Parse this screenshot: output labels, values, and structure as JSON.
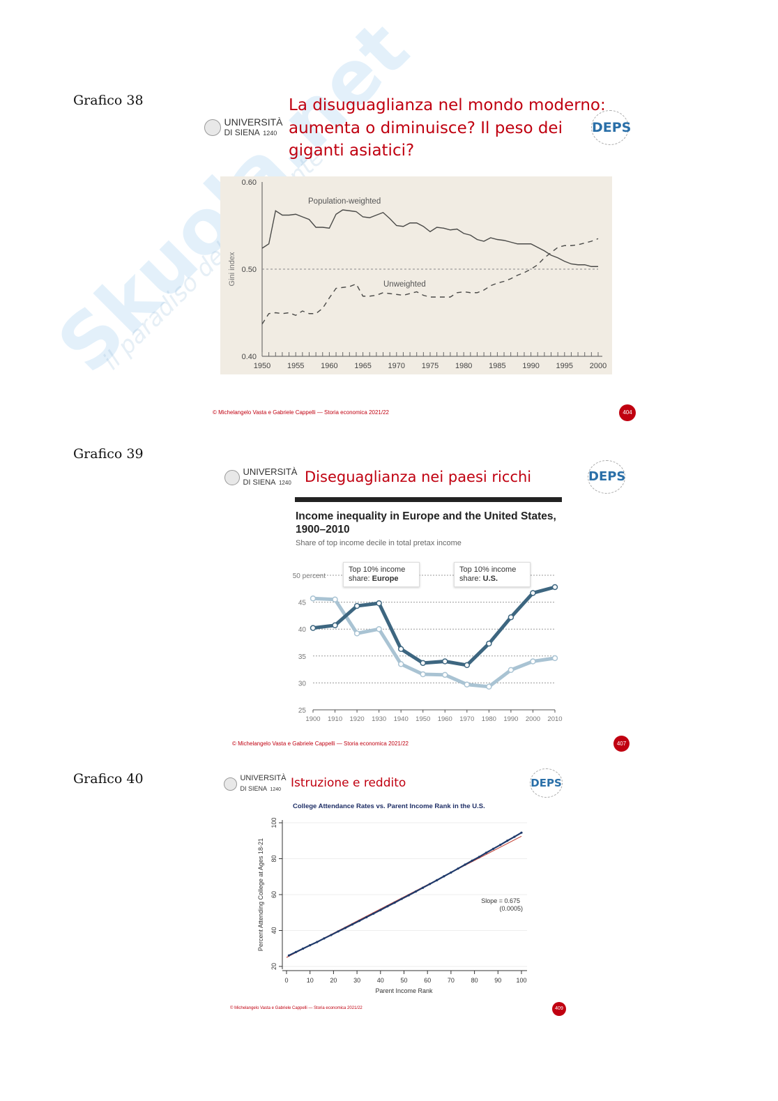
{
  "watermark": {
    "brand": "Skuola.net",
    "tagline": "il paradiso dello studente"
  },
  "slides": [
    {
      "label": "Grafico 38",
      "university": {
        "line1": "UNIVERSITÀ",
        "line2": "DI SIENA",
        "year": "1240"
      },
      "title_lines": [
        "La disuguaglianza nel mondo moderno:",
        "aumenta o diminuisce? Il peso dei",
        "giganti asiatici?"
      ],
      "deps_logo": "DEPS",
      "footer": "© Michelangelo Vasta e Gabriele Cappelli — Storia economica 2021/22",
      "page_number": "404"
    },
    {
      "label": "Grafico 39",
      "university": {
        "line1": "UNIVERSITÀ",
        "line2": "DI SIENA",
        "year": "1240"
      },
      "title_lines": [
        "Diseguaglianza nei paesi ricchi"
      ],
      "deps_logo": "DEPS",
      "footer": "© Michelangelo Vasta e Gabriele Cappelli — Storia economica 2021/22",
      "page_number": "407"
    },
    {
      "label": "Grafico 40",
      "university": {
        "line1": "UNIVERSITÀ",
        "line2": "DI SIENA",
        "year": "1240"
      },
      "title_lines": [
        "Istruzione e reddito"
      ],
      "deps_logo": "DEPS",
      "footer": "© Michelangelo Vasta e Gabriele Cappelli — Storia economica 2021/22",
      "page_number": "409"
    }
  ],
  "chart_data": [
    {
      "type": "line",
      "title": "",
      "xlabel": "",
      "ylabel": "Gini index",
      "xlim": [
        1950,
        2000
      ],
      "ylim": [
        0.4,
        0.6
      ],
      "yticks": [
        "0.40",
        "0.50",
        "0.60"
      ],
      "xticks": [
        "1950",
        "1955",
        "1960",
        "1965",
        "1970",
        "1975",
        "1980",
        "1985",
        "1990",
        "1995",
        "2000"
      ],
      "reference_line": 0.5,
      "x": [
        1950,
        1951,
        1952,
        1953,
        1954,
        1955,
        1956,
        1957,
        1958,
        1959,
        1960,
        1961,
        1962,
        1963,
        1964,
        1965,
        1966,
        1967,
        1968,
        1969,
        1970,
        1971,
        1972,
        1973,
        1974,
        1975,
        1976,
        1977,
        1978,
        1979,
        1980,
        1981,
        1982,
        1983,
        1984,
        1985,
        1986,
        1987,
        1988,
        1989,
        1990,
        1991,
        1992,
        1993,
        1994,
        1995,
        1996,
        1997,
        1998,
        1999,
        2000
      ],
      "series": [
        {
          "name": "Population-weighted",
          "style": "solid",
          "values": [
            0.524,
            0.529,
            0.567,
            0.562,
            0.562,
            0.563,
            0.56,
            0.557,
            0.548,
            0.548,
            0.547,
            0.563,
            0.568,
            0.567,
            0.566,
            0.56,
            0.559,
            0.562,
            0.565,
            0.558,
            0.55,
            0.549,
            0.553,
            0.553,
            0.549,
            0.543,
            0.548,
            0.547,
            0.545,
            0.546,
            0.541,
            0.539,
            0.534,
            0.532,
            0.536,
            0.534,
            0.533,
            0.531,
            0.529,
            0.529,
            0.529,
            0.525,
            0.521,
            0.516,
            0.513,
            0.509,
            0.506,
            0.505,
            0.505,
            0.503,
            0.503
          ]
        },
        {
          "name": "Unweighted",
          "style": "dashed",
          "values": [
            0.437,
            0.449,
            0.45,
            0.449,
            0.45,
            0.447,
            0.452,
            0.449,
            0.449,
            0.455,
            0.467,
            0.478,
            0.479,
            0.48,
            0.483,
            0.469,
            0.469,
            0.47,
            0.473,
            0.472,
            0.471,
            0.47,
            0.472,
            0.474,
            0.47,
            0.468,
            0.468,
            0.468,
            0.468,
            0.473,
            0.474,
            0.473,
            0.473,
            0.476,
            0.481,
            0.484,
            0.486,
            0.489,
            0.493,
            0.496,
            0.5,
            0.505,
            0.513,
            0.519,
            0.525,
            0.527,
            0.527,
            0.528,
            0.53,
            0.532,
            0.535
          ]
        }
      ],
      "colors": {
        "line": "#4a4a48",
        "background": "#f1ece3"
      }
    },
    {
      "type": "line",
      "title": "Income inequality in Europe and the United States,",
      "title_line2": "1900–2010",
      "subtitle": "Share of top income decile in total pretax income",
      "xlabel": "",
      "ylabel": "",
      "ylim": [
        25,
        50
      ],
      "yticks": [
        "25",
        "30",
        "35",
        "40",
        "45",
        "50 percent"
      ],
      "xticks": [
        "1900",
        "1910",
        "1920",
        "1930",
        "1940",
        "1950",
        "1960",
        "1970",
        "1980",
        "1990",
        "2000",
        "2010"
      ],
      "x": [
        1900,
        1910,
        1920,
        1930,
        1940,
        1950,
        1960,
        1970,
        1980,
        1990,
        2000,
        2010
      ],
      "series": [
        {
          "name": "Top 10% income share: U.S.",
          "label_prefix": "Top 10% income",
          "label_mid": "share: ",
          "label_bold": "U.S.",
          "color": "#3d6680",
          "values": [
            40.2,
            40.7,
            44.3,
            44.8,
            36.3,
            33.7,
            34.0,
            33.3,
            37.3,
            42.2,
            46.7,
            47.8
          ]
        },
        {
          "name": "Top 10% income share: Europe",
          "label_prefix": "Top 10% income",
          "label_mid": "share: ",
          "label_bold": "Europe",
          "color": "#a9c3d3",
          "values": [
            45.7,
            45.5,
            39.2,
            40.0,
            33.5,
            31.6,
            31.5,
            29.7,
            29.3,
            32.4,
            34.0,
            34.6
          ]
        }
      ]
    },
    {
      "type": "scatter",
      "title": "College Attendance Rates vs. Parent Income Rank in the U.S.",
      "xlabel": "Parent Income Rank",
      "ylabel": "Percent Attending College at Ages 18-21",
      "xlim": [
        0,
        100
      ],
      "ylim": [
        20,
        100
      ],
      "xticks": [
        "0",
        "10",
        "20",
        "30",
        "40",
        "50",
        "60",
        "70",
        "80",
        "90",
        "100"
      ],
      "yticks": [
        "20",
        "40",
        "60",
        "80",
        "100"
      ],
      "annotation": {
        "line1": "Slope = 0.675",
        "line2": "(0.0005)"
      },
      "x": [
        1,
        4,
        7,
        10,
        13,
        16,
        19,
        22,
        25,
        28,
        31,
        34,
        37,
        40,
        43,
        46,
        49,
        52,
        55,
        58,
        61,
        64,
        67,
        70,
        73,
        76,
        79,
        82,
        85,
        88,
        91,
        94,
        97,
        100
      ],
      "y": [
        26.1,
        28.0,
        29.9,
        31.8,
        33.6,
        35.6,
        37.5,
        39.5,
        41.4,
        43.4,
        45.4,
        47.4,
        49.4,
        51.4,
        53.5,
        55.5,
        57.6,
        59.6,
        61.7,
        63.8,
        65.9,
        68.0,
        70.2,
        72.3,
        74.5,
        76.7,
        78.9,
        81.0,
        83.3,
        85.5,
        87.7,
        90.0,
        92.2,
        94.5
      ],
      "fit_line": {
        "x": [
          0,
          100
        ],
        "y": [
          25.0,
          92.5
        ],
        "color": "#c0392b"
      },
      "colors": {
        "points": "#1f3a6b",
        "title": "#1f2f66"
      }
    }
  ]
}
